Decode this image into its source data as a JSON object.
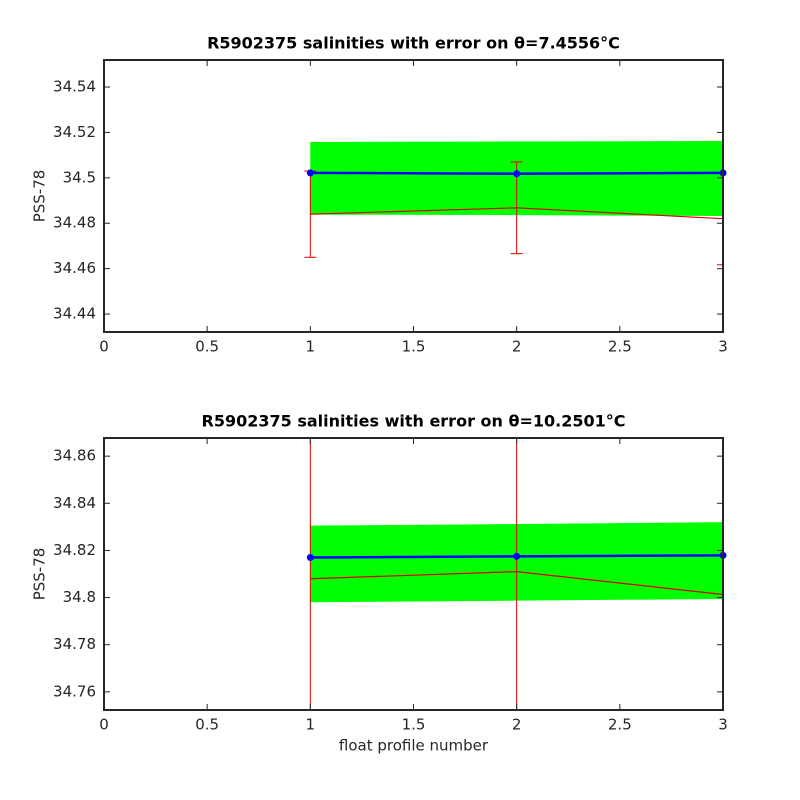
{
  "chart_data": [
    {
      "type": "line",
      "title": "R5902375 salinities with error on θ=7.4556°C",
      "ylabel": "PSS-78",
      "x": [
        1,
        2,
        3
      ],
      "band": {
        "color": "#00ff00",
        "upper": [
          34.5158,
          34.516,
          34.5162
        ],
        "lower": [
          34.4838,
          34.4836,
          34.4832
        ]
      },
      "series": [
        {
          "color": "#dd0000",
          "values": [
            34.484,
            34.4868,
            34.482
          ],
          "errors": [
            0.019,
            0.0202,
            0.0203
          ]
        },
        {
          "color": "#0000ff",
          "values": [
            34.5022,
            34.5018,
            34.5022
          ],
          "markers": true
        }
      ],
      "xlim": [
        0,
        3
      ],
      "xticks": [
        0,
        0.5,
        1,
        1.5,
        2,
        2.5,
        3
      ],
      "ylim": [
        34.4321,
        34.5519
      ],
      "yticks": [
        34.44,
        34.46,
        34.48,
        34.5,
        34.52,
        34.54
      ]
    },
    {
      "type": "line",
      "title": "R5902375 salinities with error on θ=10.2501°C",
      "ylabel": "PSS-78",
      "xlabel": "float profile number",
      "x": [
        1,
        2,
        3
      ],
      "band": {
        "color": "#00ff00",
        "upper": [
          34.8305,
          34.8312,
          34.832
        ],
        "lower": [
          34.798,
          34.7987,
          34.7994
        ]
      },
      "series": [
        {
          "color": "#dd0000",
          "values": [
            34.808,
            34.811,
            34.8013
          ],
          "errors": [
            0.08,
            0.08,
            0.08
          ]
        },
        {
          "color": "#0000ff",
          "values": [
            34.817,
            34.8175,
            34.8179
          ],
          "markers": true
        }
      ],
      "xlim": [
        0,
        3
      ],
      "xticks": [
        0,
        0.5,
        1,
        1.5,
        2,
        2.5,
        3
      ],
      "ylim": [
        34.7523,
        34.8677
      ],
      "yticks": [
        34.76,
        34.78,
        34.8,
        34.82,
        34.84,
        34.86
      ]
    }
  ]
}
